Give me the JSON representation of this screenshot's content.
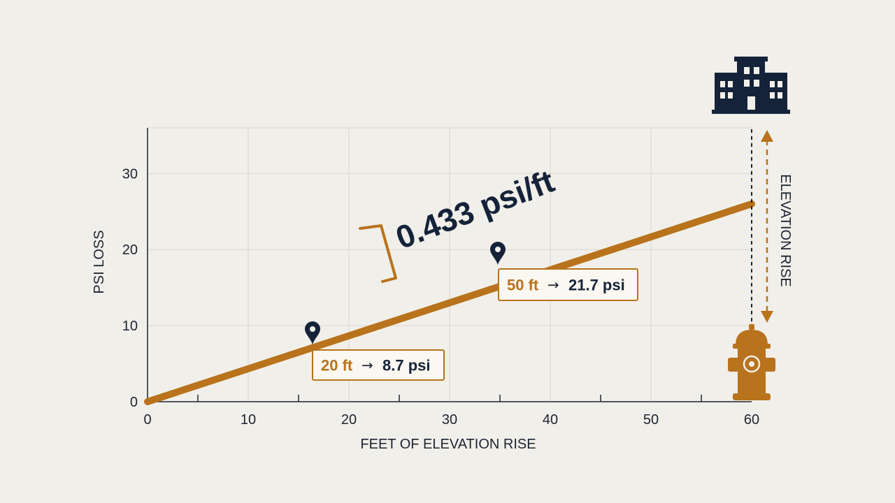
{
  "chart_data": {
    "type": "line",
    "xlabel": "FEET OF ELEVATION RISE",
    "ylabel": "PSI LOSS",
    "xlim": [
      0,
      60
    ],
    "ylim": [
      0,
      36
    ],
    "x_ticks": [
      0,
      10,
      20,
      30,
      40,
      50,
      60
    ],
    "y_ticks": [
      0,
      10,
      20,
      30
    ],
    "grid": true,
    "series": [
      {
        "x": [
          0,
          60
        ],
        "y": [
          0,
          26.0
        ]
      }
    ],
    "slope_label": "0.433 psi/ft",
    "callouts": [
      {
        "x": 20,
        "y": 8.7,
        "x_text": "20 ft",
        "arrow": "→",
        "y_text": "8.7 psi"
      },
      {
        "x": 50,
        "y": 21.7,
        "x_text": "50 ft",
        "arrow": "→",
        "y_text": "21.7 psi"
      }
    ],
    "side_label": "ELEVATION RISE",
    "icons": [
      "building-icon",
      "fire-hydrant-icon",
      "map-pin-icon"
    ],
    "colors": {
      "line": "#b8731c",
      "accent": "#b8731c",
      "dark": "#15233a",
      "grid": "#d9d6cf",
      "background": "#f1efe9"
    }
  }
}
